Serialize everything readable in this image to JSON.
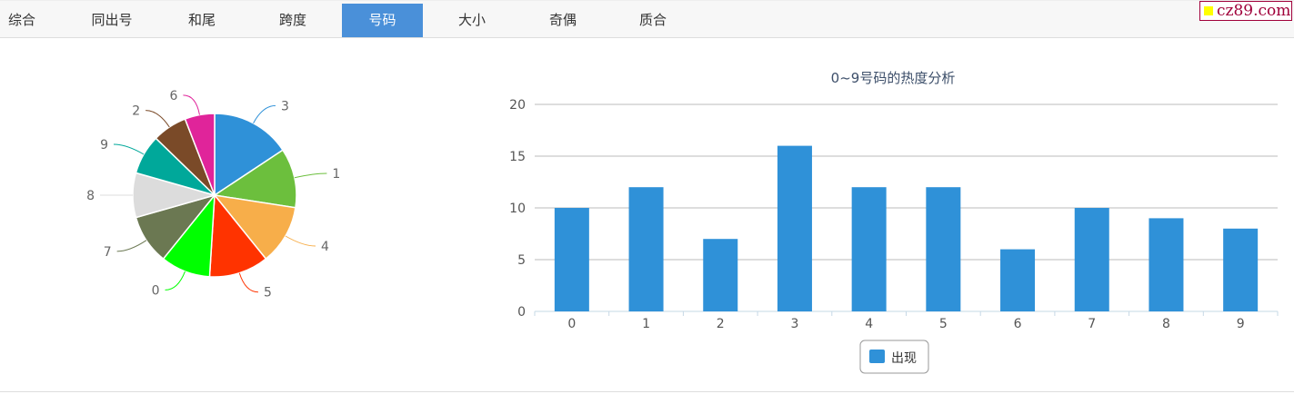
{
  "tabs": [
    {
      "label": "综合"
    },
    {
      "label": "同出号"
    },
    {
      "label": "和尾"
    },
    {
      "label": "跨度"
    },
    {
      "label": "号码",
      "active": true
    },
    {
      "label": "大小"
    },
    {
      "label": "奇偶"
    },
    {
      "label": "质合"
    }
  ],
  "logo": {
    "text": "cz89.com"
  },
  "chart_data": [
    {
      "type": "pie",
      "labels": [
        "3",
        "1",
        "4",
        "5",
        "0",
        "7",
        "8",
        "9",
        "2",
        "6"
      ],
      "values": [
        16,
        12,
        12,
        12,
        10,
        10,
        9,
        8,
        7,
        6
      ],
      "colors": [
        "#2f91d8",
        "#6cbf3d",
        "#f7ae4a",
        "#ff3300",
        "#00ff00",
        "#6b7852",
        "#dcdcdc",
        "#00a89a",
        "#7a4a28",
        "#e0249a"
      ]
    },
    {
      "type": "bar",
      "title": "0~9号码的热度分析",
      "categories": [
        "0",
        "1",
        "2",
        "3",
        "4",
        "5",
        "6",
        "7",
        "8",
        "9"
      ],
      "series": [
        {
          "name": "出现",
          "values": [
            10,
            12,
            7,
            16,
            12,
            12,
            6,
            10,
            9,
            8
          ],
          "color": "#2f91d8"
        }
      ],
      "ylim": [
        0,
        20
      ],
      "yticks": [
        "0",
        "5",
        "10",
        "15",
        "20"
      ],
      "grid": true,
      "legend": "bottom"
    }
  ]
}
